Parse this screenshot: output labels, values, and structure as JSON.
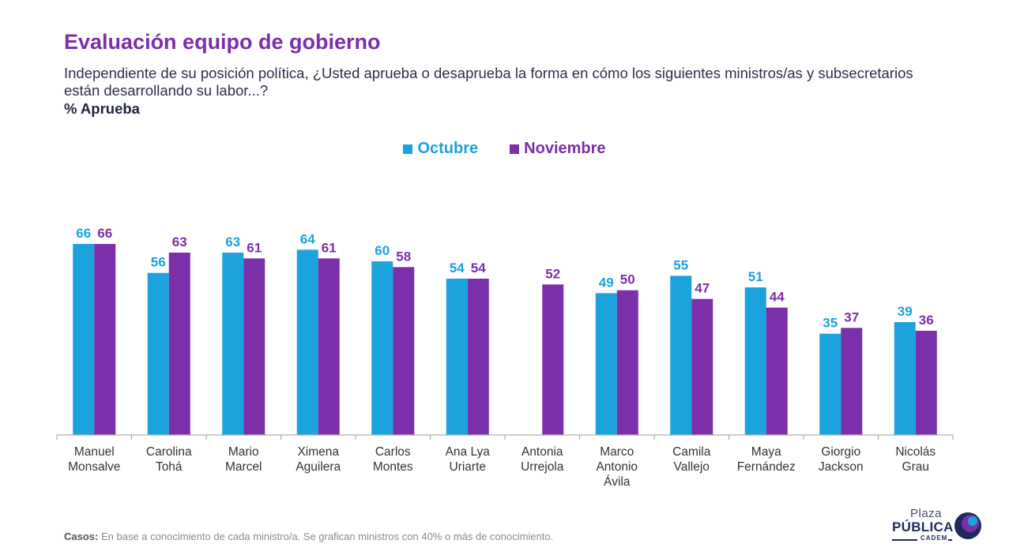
{
  "header": {
    "title": "Evaluación equipo de gobierno",
    "subtitle": "Independiente de su posición política, ¿Usted aprueba o desaprueba la forma en cómo los siguientes ministros/as y subsecretarios están desarrollando su labor...?",
    "unit_label": "% Aprueba"
  },
  "colors": {
    "octubre": "#1aa3dc",
    "noviembre": "#7b2fa8",
    "axis": "#b0b0b0",
    "label_text": "#333333"
  },
  "chart_data": {
    "type": "bar",
    "title": "Evaluación equipo de gobierno",
    "ylabel": "% Aprueba",
    "xlabel": "",
    "ylim": [
      0,
      66
    ],
    "grid": false,
    "legend_position": "top-center",
    "categories": [
      [
        "Manuel",
        "Monsalve"
      ],
      [
        "Carolina",
        "Tohá"
      ],
      [
        "Mario",
        "Marcel"
      ],
      [
        "Ximena",
        "Aguilera"
      ],
      [
        "Carlos",
        "Montes"
      ],
      [
        "Ana Lya",
        "Uriarte"
      ],
      [
        "Antonia",
        "Urrejola"
      ],
      [
        "Marco",
        "Antonio",
        "Ávila"
      ],
      [
        "Camila",
        "Vallejo"
      ],
      [
        "Maya",
        "Fernández"
      ],
      [
        "Giorgio",
        "Jackson"
      ],
      [
        "Nicolás",
        "Grau"
      ]
    ],
    "series": [
      {
        "name": "Octubre",
        "values": [
          66,
          56,
          63,
          64,
          60,
          54,
          null,
          49,
          55,
          51,
          35,
          39
        ]
      },
      {
        "name": "Noviembre",
        "values": [
          66,
          63,
          61,
          61,
          58,
          54,
          52,
          50,
          47,
          44,
          37,
          36
        ]
      }
    ]
  },
  "footnote": {
    "label": "Casos:",
    "text": " En base a conocimiento de cada ministro/a. Se grafican ministros con 40% o más de conocimiento."
  },
  "logo": {
    "top": "Plaza",
    "main": "PÚBLICA",
    "sub": "CADEM"
  }
}
